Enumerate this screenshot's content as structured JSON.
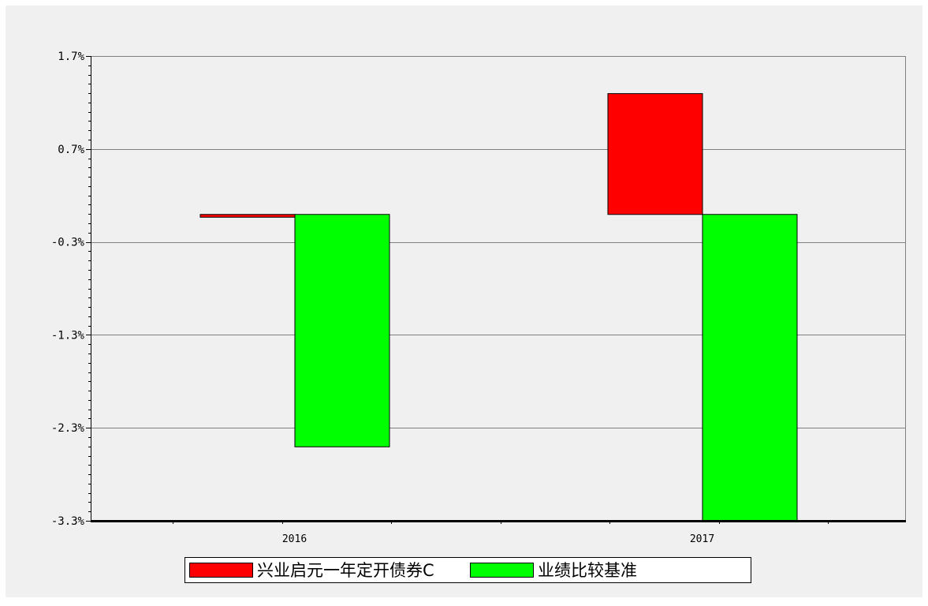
{
  "chart_data": {
    "type": "bar",
    "categories": [
      "2016",
      "2017"
    ],
    "series": [
      {
        "name": "兴业启元一年定开债券C",
        "color": "#ff0000",
        "values": [
          -0.03,
          1.3
        ]
      },
      {
        "name": "业绩比较基准",
        "color": "#00ff00",
        "values": [
          -2.5,
          -3.4
        ]
      }
    ],
    "ylim": [
      -3.3,
      1.7
    ],
    "yticks": [
      1.7,
      0.7,
      -0.3,
      -1.3,
      -2.3,
      -3.3
    ],
    "ytick_labels": [
      "1.7%",
      "0.7%",
      "-0.3%",
      "-1.3%",
      "-2.3%",
      "-3.3%"
    ],
    "grid": true,
    "legend_position": "bottom"
  },
  "colors": {
    "outer_background": "#f0f0f0",
    "plot_background": "#f0f0f0",
    "gridline": "#808080",
    "axis": "#000000"
  }
}
